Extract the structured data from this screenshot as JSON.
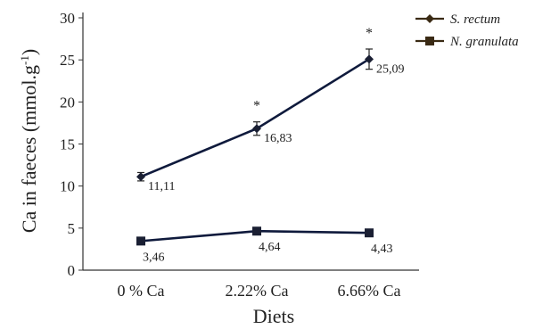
{
  "chart_data": {
    "type": "line",
    "title": "",
    "xlabel": "Diets",
    "ylabel": "Ca in faeces (mmol.g",
    "ylabel_superscript": "-1",
    "ylabel_close": ")",
    "categories": [
      "0 % Ca",
      "2.22% Ca",
      "6.66% Ca"
    ],
    "ylim": [
      0,
      30
    ],
    "yticks": [
      0,
      5,
      10,
      15,
      20,
      25,
      30
    ],
    "grid": false,
    "legend_position": "top-right",
    "series": [
      {
        "name": "S. rectum",
        "marker": "diamond",
        "values": [
          11.11,
          16.83,
          25.09
        ],
        "labels": [
          "11,11",
          "16,83",
          "25,09"
        ],
        "errors": [
          0.5,
          0.8,
          1.2
        ],
        "significance": [
          "",
          "*",
          "*"
        ]
      },
      {
        "name": "N. granulata",
        "marker": "square",
        "values": [
          3.46,
          4.64,
          4.43
        ],
        "labels": [
          "3,46",
          "4,64",
          "4,43"
        ]
      }
    ],
    "colors": {
      "line": "#0f1a3c",
      "marker": "#1a1f33",
      "legend_marker": "#3a2a14",
      "axis": "#333333"
    }
  }
}
